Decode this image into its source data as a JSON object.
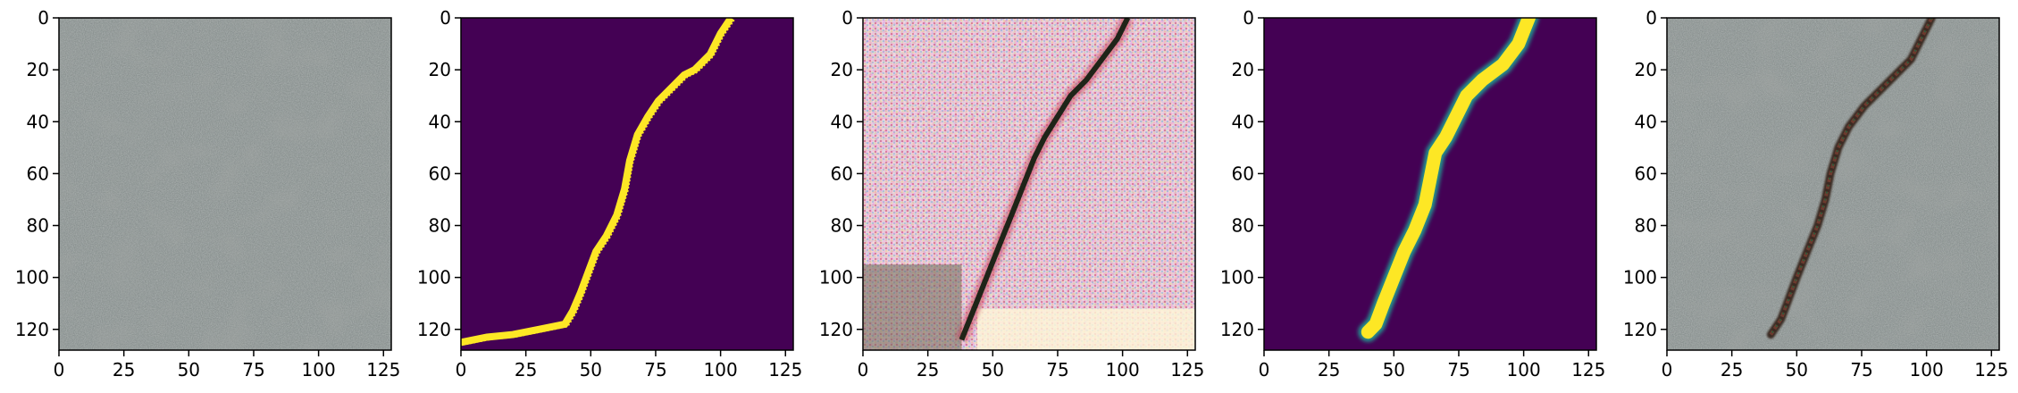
{
  "chart_data": [
    {
      "type": "image",
      "title": "",
      "content": "concrete surface photo (no crack)",
      "xlim": [
        0,
        128
      ],
      "ylim": [
        128,
        0
      ],
      "xticks": [
        0,
        25,
        50,
        75,
        100,
        125
      ],
      "yticks": [
        0,
        20,
        40,
        60,
        80,
        100,
        120
      ]
    },
    {
      "type": "heatmap",
      "title": "",
      "content": "binary crack mask (viridis)",
      "colors": {
        "background": "#440154",
        "foreground": "#fde725"
      },
      "crack_path": [
        [
          104,
          0
        ],
        [
          100,
          6
        ],
        [
          96,
          14
        ],
        [
          90,
          20
        ],
        [
          86,
          22
        ],
        [
          82,
          26
        ],
        [
          76,
          32
        ],
        [
          72,
          38
        ],
        [
          68,
          45
        ],
        [
          65,
          55
        ],
        [
          63,
          66
        ],
        [
          60,
          76
        ],
        [
          56,
          84
        ],
        [
          52,
          90
        ],
        [
          49,
          98
        ],
        [
          46,
          106
        ],
        [
          43,
          113
        ],
        [
          40,
          118
        ],
        [
          30,
          120
        ],
        [
          20,
          122
        ],
        [
          10,
          123
        ],
        [
          0,
          125
        ]
      ],
      "xlim": [
        0,
        128
      ],
      "ylim": [
        128,
        0
      ],
      "xticks": [
        0,
        25,
        50,
        75,
        100,
        125
      ],
      "yticks": [
        0,
        20,
        40,
        60,
        80,
        100,
        120
      ]
    },
    {
      "type": "image",
      "title": "",
      "content": "generated crack image (noisy pink/white texture)",
      "crack_path": [
        [
          102,
          0
        ],
        [
          98,
          8
        ],
        [
          92,
          16
        ],
        [
          86,
          24
        ],
        [
          80,
          30
        ],
        [
          75,
          38
        ],
        [
          70,
          46
        ],
        [
          66,
          54
        ],
        [
          62,
          64
        ],
        [
          58,
          74
        ],
        [
          54,
          84
        ],
        [
          50,
          94
        ],
        [
          46,
          104
        ],
        [
          42,
          114
        ],
        [
          38,
          124
        ]
      ],
      "xlim": [
        0,
        128
      ],
      "ylim": [
        128,
        0
      ],
      "xticks": [
        0,
        25,
        50,
        75,
        100,
        125
      ],
      "yticks": [
        0,
        20,
        40,
        60,
        80,
        100,
        120
      ]
    },
    {
      "type": "heatmap",
      "title": "",
      "content": "predicted crack mask (viridis)",
      "colors": {
        "background": "#440154",
        "foreground": "#fde725",
        "edge": "#21918c"
      },
      "crack_path": [
        [
          102,
          0
        ],
        [
          98,
          10
        ],
        [
          92,
          18
        ],
        [
          84,
          24
        ],
        [
          78,
          30
        ],
        [
          74,
          38
        ],
        [
          70,
          46
        ],
        [
          66,
          52
        ],
        [
          64,
          62
        ],
        [
          62,
          72
        ],
        [
          58,
          82
        ],
        [
          54,
          90
        ],
        [
          50,
          100
        ],
        [
          46,
          110
        ],
        [
          43,
          118
        ],
        [
          40,
          121
        ]
      ],
      "xlim": [
        0,
        128
      ],
      "ylim": [
        128,
        0
      ],
      "xticks": [
        0,
        25,
        50,
        75,
        100,
        125
      ],
      "yticks": [
        0,
        20,
        40,
        60,
        80,
        100,
        120
      ]
    },
    {
      "type": "image",
      "title": "",
      "content": "concrete surface with overlaid crack",
      "crack_path": [
        [
          102,
          0
        ],
        [
          98,
          8
        ],
        [
          94,
          16
        ],
        [
          88,
          22
        ],
        [
          82,
          28
        ],
        [
          76,
          34
        ],
        [
          70,
          42
        ],
        [
          66,
          50
        ],
        [
          63,
          60
        ],
        [
          61,
          70
        ],
        [
          58,
          80
        ],
        [
          54,
          90
        ],
        [
          50,
          100
        ],
        [
          47,
          108
        ],
        [
          44,
          116
        ],
        [
          40,
          122
        ]
      ],
      "xlim": [
        0,
        128
      ],
      "ylim": [
        128,
        0
      ],
      "xticks": [
        0,
        25,
        50,
        75,
        100,
        125
      ],
      "yticks": [
        0,
        20,
        40,
        60,
        80,
        100,
        120
      ]
    }
  ]
}
